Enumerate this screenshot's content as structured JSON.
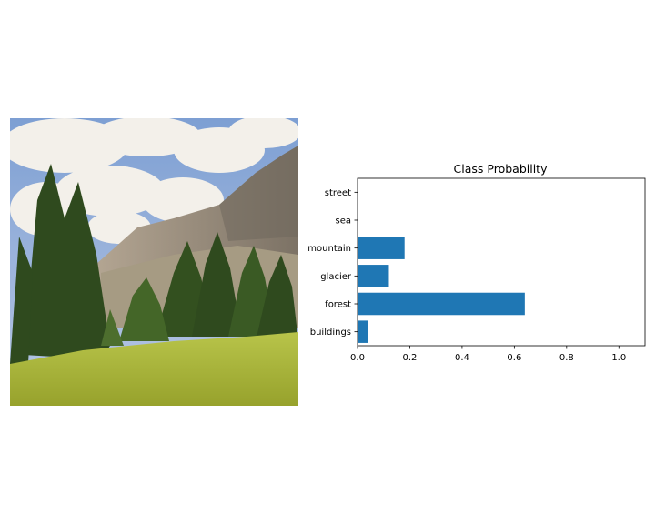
{
  "chart_data": {
    "type": "bar",
    "orientation": "horizontal",
    "title": "Class Probability",
    "categories": [
      "buildings",
      "forest",
      "glacier",
      "mountain",
      "sea",
      "street"
    ],
    "values": [
      0.04,
      0.64,
      0.12,
      0.18,
      0.003,
      0.003
    ],
    "xlim": [
      0,
      1.1
    ],
    "xticks": [
      "0.0",
      "0.2",
      "0.4",
      "0.6",
      "0.8",
      "1.0"
    ],
    "xtick_values": [
      0,
      0.2,
      0.4,
      0.6,
      0.8,
      1.0
    ],
    "xlabel": "",
    "ylabel": "",
    "grid": false,
    "bar_color": "#1f77b4"
  },
  "image": {
    "sky_color": "#8ea9d6",
    "cloud_color": "#f2efea",
    "cliff_color": "#9c8f7c",
    "tree_color": "#2e4a1c",
    "grass_color": "#a9b83a"
  }
}
